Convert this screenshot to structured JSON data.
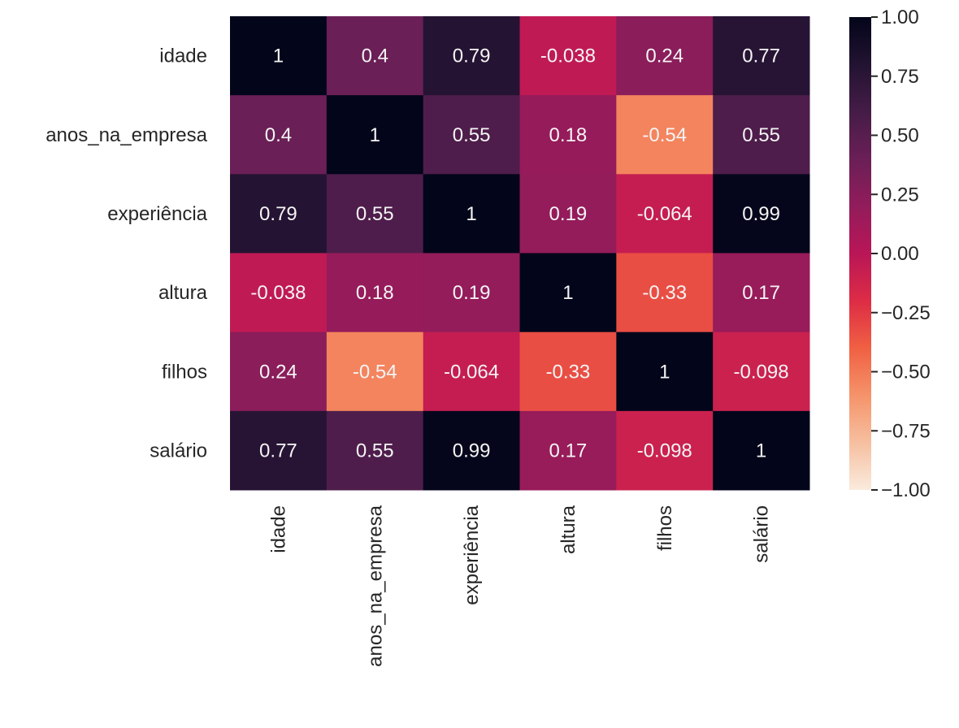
{
  "chart_data": {
    "type": "heatmap",
    "title": "",
    "xlabel": "",
    "ylabel": "",
    "x_labels": [
      "idade",
      "anos_na_empresa",
      "experiência",
      "altura",
      "filhos",
      "salário"
    ],
    "y_labels": [
      "idade",
      "anos_na_empresa",
      "experiência",
      "altura",
      "filhos",
      "salário"
    ],
    "values": [
      [
        1,
        0.4,
        0.79,
        -0.038,
        0.24,
        0.77
      ],
      [
        0.4,
        1,
        0.55,
        0.18,
        -0.54,
        0.55
      ],
      [
        0.79,
        0.55,
        1,
        0.19,
        -0.064,
        0.99
      ],
      [
        -0.038,
        0.18,
        0.19,
        1,
        -0.33,
        0.17
      ],
      [
        0.24,
        -0.54,
        -0.064,
        -0.33,
        1,
        -0.098
      ],
      [
        0.77,
        0.55,
        0.99,
        0.17,
        -0.098,
        1
      ]
    ],
    "annotations": [
      [
        "1",
        "0.4",
        "0.79",
        "-0.038",
        "0.24",
        "0.77"
      ],
      [
        "0.4",
        "1",
        "0.55",
        "0.18",
        "-0.54",
        "0.55"
      ],
      [
        "0.79",
        "0.55",
        "1",
        "0.19",
        "-0.064",
        "0.99"
      ],
      [
        "-0.038",
        "0.18",
        "0.19",
        "1",
        "-0.33",
        "0.17"
      ],
      [
        "0.24",
        "-0.54",
        "-0.064",
        "-0.33",
        "1",
        "-0.098"
      ],
      [
        "0.77",
        "0.55",
        "0.99",
        "0.17",
        "-0.098",
        "1"
      ]
    ],
    "colormap": "rocket_r",
    "colormap_stops": [
      "#FAEBDD",
      "#F6BFA0",
      "#F5936A",
      "#F06043",
      "#DD2C45",
      "#B91657",
      "#921C5B",
      "#6A1F56",
      "#451C47",
      "#221331",
      "#03051A"
    ],
    "vmin": -1,
    "vmax": 1,
    "colorbar": {
      "ticks": [
        1.0,
        0.75,
        0.5,
        0.25,
        0.0,
        -0.25,
        -0.5,
        -0.75,
        -1.0
      ],
      "tick_labels": [
        "1.00",
        "0.75",
        "0.50",
        "0.25",
        "0.00",
        "−0.25",
        "−0.50",
        "−0.75",
        "−1.00"
      ],
      "placement": "right"
    },
    "grid": false
  }
}
